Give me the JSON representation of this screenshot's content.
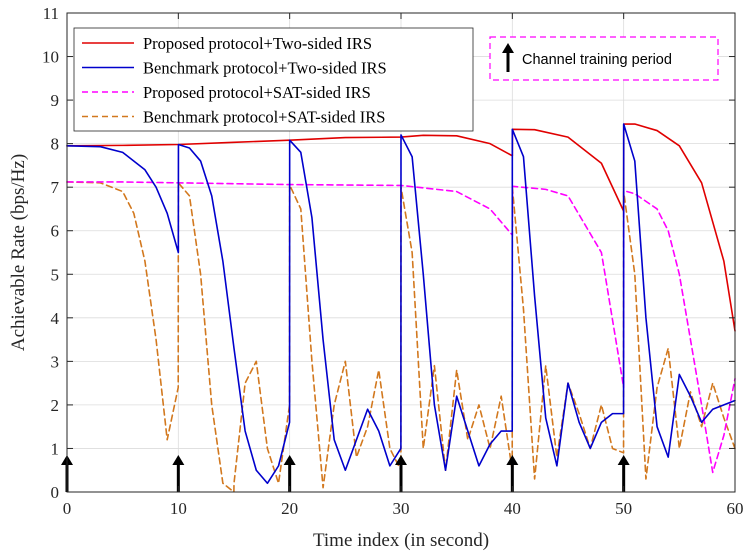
{
  "chart_data": {
    "type": "line",
    "xlabel": "Time index (in second)",
    "ylabel": "Achievable Rate (bps/Hz)",
    "xlim": [
      0,
      60
    ],
    "ylim": [
      0,
      11
    ],
    "xticks": [
      "0",
      "10",
      "20",
      "30",
      "40",
      "50",
      "60"
    ],
    "yticks": [
      "0",
      "1",
      "2",
      "3",
      "4",
      "5",
      "6",
      "7",
      "8",
      "9",
      "10",
      "11"
    ],
    "grid": true,
    "legend_position": "top-left",
    "series": [
      {
        "name": "Proposed protocol+Two-sided IRS",
        "color": "#e00000",
        "style": "solid",
        "x": [
          0,
          5,
          10,
          15,
          20,
          25,
          30,
          32,
          35,
          38,
          40,
          40.01,
          42,
          45,
          48,
          50,
          50.01,
          51,
          53,
          55,
          57,
          59,
          60
        ],
        "y": [
          7.95,
          7.96,
          7.98,
          8.03,
          8.08,
          8.14,
          8.15,
          8.19,
          8.18,
          8.0,
          7.72,
          8.33,
          8.32,
          8.15,
          7.55,
          6.45,
          8.45,
          8.45,
          8.3,
          7.95,
          7.1,
          5.3,
          3.7
        ]
      },
      {
        "name": "Benchmark protocol+Two-sided IRS",
        "color": "#0000cc",
        "style": "solid",
        "x": [
          0,
          3,
          5,
          7,
          8,
          9,
          10,
          10.01,
          11,
          12,
          13,
          14,
          15,
          16,
          17,
          18,
          19,
          19.99,
          20,
          21,
          22,
          23,
          24,
          25,
          26,
          27,
          28,
          29,
          29.99,
          30,
          31,
          32,
          33,
          34,
          35,
          36,
          37,
          38,
          39,
          39.99,
          40,
          41,
          42,
          43,
          44,
          45,
          46,
          47,
          48,
          49,
          49.99,
          50,
          51,
          52,
          53,
          54,
          55,
          56,
          57,
          58,
          59,
          60
        ],
        "y": [
          7.95,
          7.93,
          7.8,
          7.4,
          7.0,
          6.4,
          5.5,
          7.98,
          7.9,
          7.6,
          6.8,
          5.3,
          3.3,
          1.4,
          0.5,
          0.2,
          0.6,
          1.6,
          8.08,
          7.8,
          6.3,
          3.5,
          1.2,
          0.5,
          1.2,
          1.9,
          1.4,
          0.6,
          1.0,
          8.2,
          7.7,
          5.0,
          2.0,
          0.5,
          2.2,
          1.4,
          0.6,
          1.1,
          1.4,
          1.4,
          8.33,
          7.7,
          4.5,
          1.7,
          0.6,
          2.5,
          1.6,
          1.0,
          1.6,
          1.8,
          1.8,
          8.45,
          7.6,
          4.0,
          1.5,
          0.8,
          2.7,
          2.2,
          1.6,
          1.9,
          2.0,
          2.1
        ]
      },
      {
        "name": "Proposed protocol+SAT-sided IRS",
        "color": "#ff00ff",
        "style": "dashed",
        "x": [
          0,
          5,
          10,
          15,
          20,
          25,
          30,
          35,
          38,
          40,
          40.01,
          43,
          45,
          48,
          50,
          50.01,
          51,
          53,
          54,
          55,
          56,
          57,
          58,
          59,
          60
        ],
        "y": [
          7.12,
          7.12,
          7.1,
          7.08,
          7.06,
          7.05,
          7.04,
          6.9,
          6.5,
          5.9,
          7.02,
          6.95,
          6.8,
          5.5,
          2.4,
          6.92,
          6.85,
          6.5,
          6.0,
          5.0,
          3.5,
          2.0,
          0.45,
          1.3,
          2.6
        ]
      },
      {
        "name": "Benchmark protocol+SAT-sided IRS",
        "color": "#d2781e",
        "style": "dashed",
        "x": [
          0,
          3,
          5,
          6,
          7,
          8,
          9,
          9.99,
          10,
          11,
          12,
          13,
          14,
          14.99,
          15,
          16,
          17,
          18,
          19,
          19.99,
          20,
          21,
          22,
          23,
          24,
          25,
          26,
          27,
          28,
          29,
          29.99,
          30,
          31,
          32,
          33,
          34,
          35,
          36,
          37,
          38,
          39,
          39.99,
          40,
          41,
          42,
          43,
          44,
          45,
          46,
          47,
          48,
          49,
          49.99,
          50,
          51,
          52,
          53,
          54,
          55,
          56,
          57,
          58,
          59,
          60
        ],
        "y": [
          7.12,
          7.1,
          6.9,
          6.4,
          5.3,
          3.5,
          1.2,
          2.4,
          7.1,
          6.8,
          5.0,
          2.0,
          0.2,
          0.0,
          0.2,
          2.5,
          3.0,
          1.0,
          0.2,
          2.0,
          7.05,
          6.5,
          3.0,
          0.1,
          2.0,
          3.0,
          0.8,
          1.5,
          2.8,
          1.0,
          0.5,
          7.0,
          5.5,
          1.0,
          2.9,
          0.5,
          2.8,
          1.2,
          2.0,
          1.0,
          2.2,
          0.5,
          7.0,
          4.2,
          0.3,
          2.9,
          0.8,
          2.5,
          1.8,
          1.0,
          2.0,
          1.0,
          0.9,
          6.9,
          5.0,
          0.3,
          2.4,
          3.3,
          1.0,
          2.3,
          1.5,
          2.5,
          1.7,
          1.0
        ]
      }
    ],
    "annotation": {
      "label": "Channel training period",
      "arrow_x": [
        0,
        10,
        20,
        30,
        40,
        50
      ]
    }
  }
}
